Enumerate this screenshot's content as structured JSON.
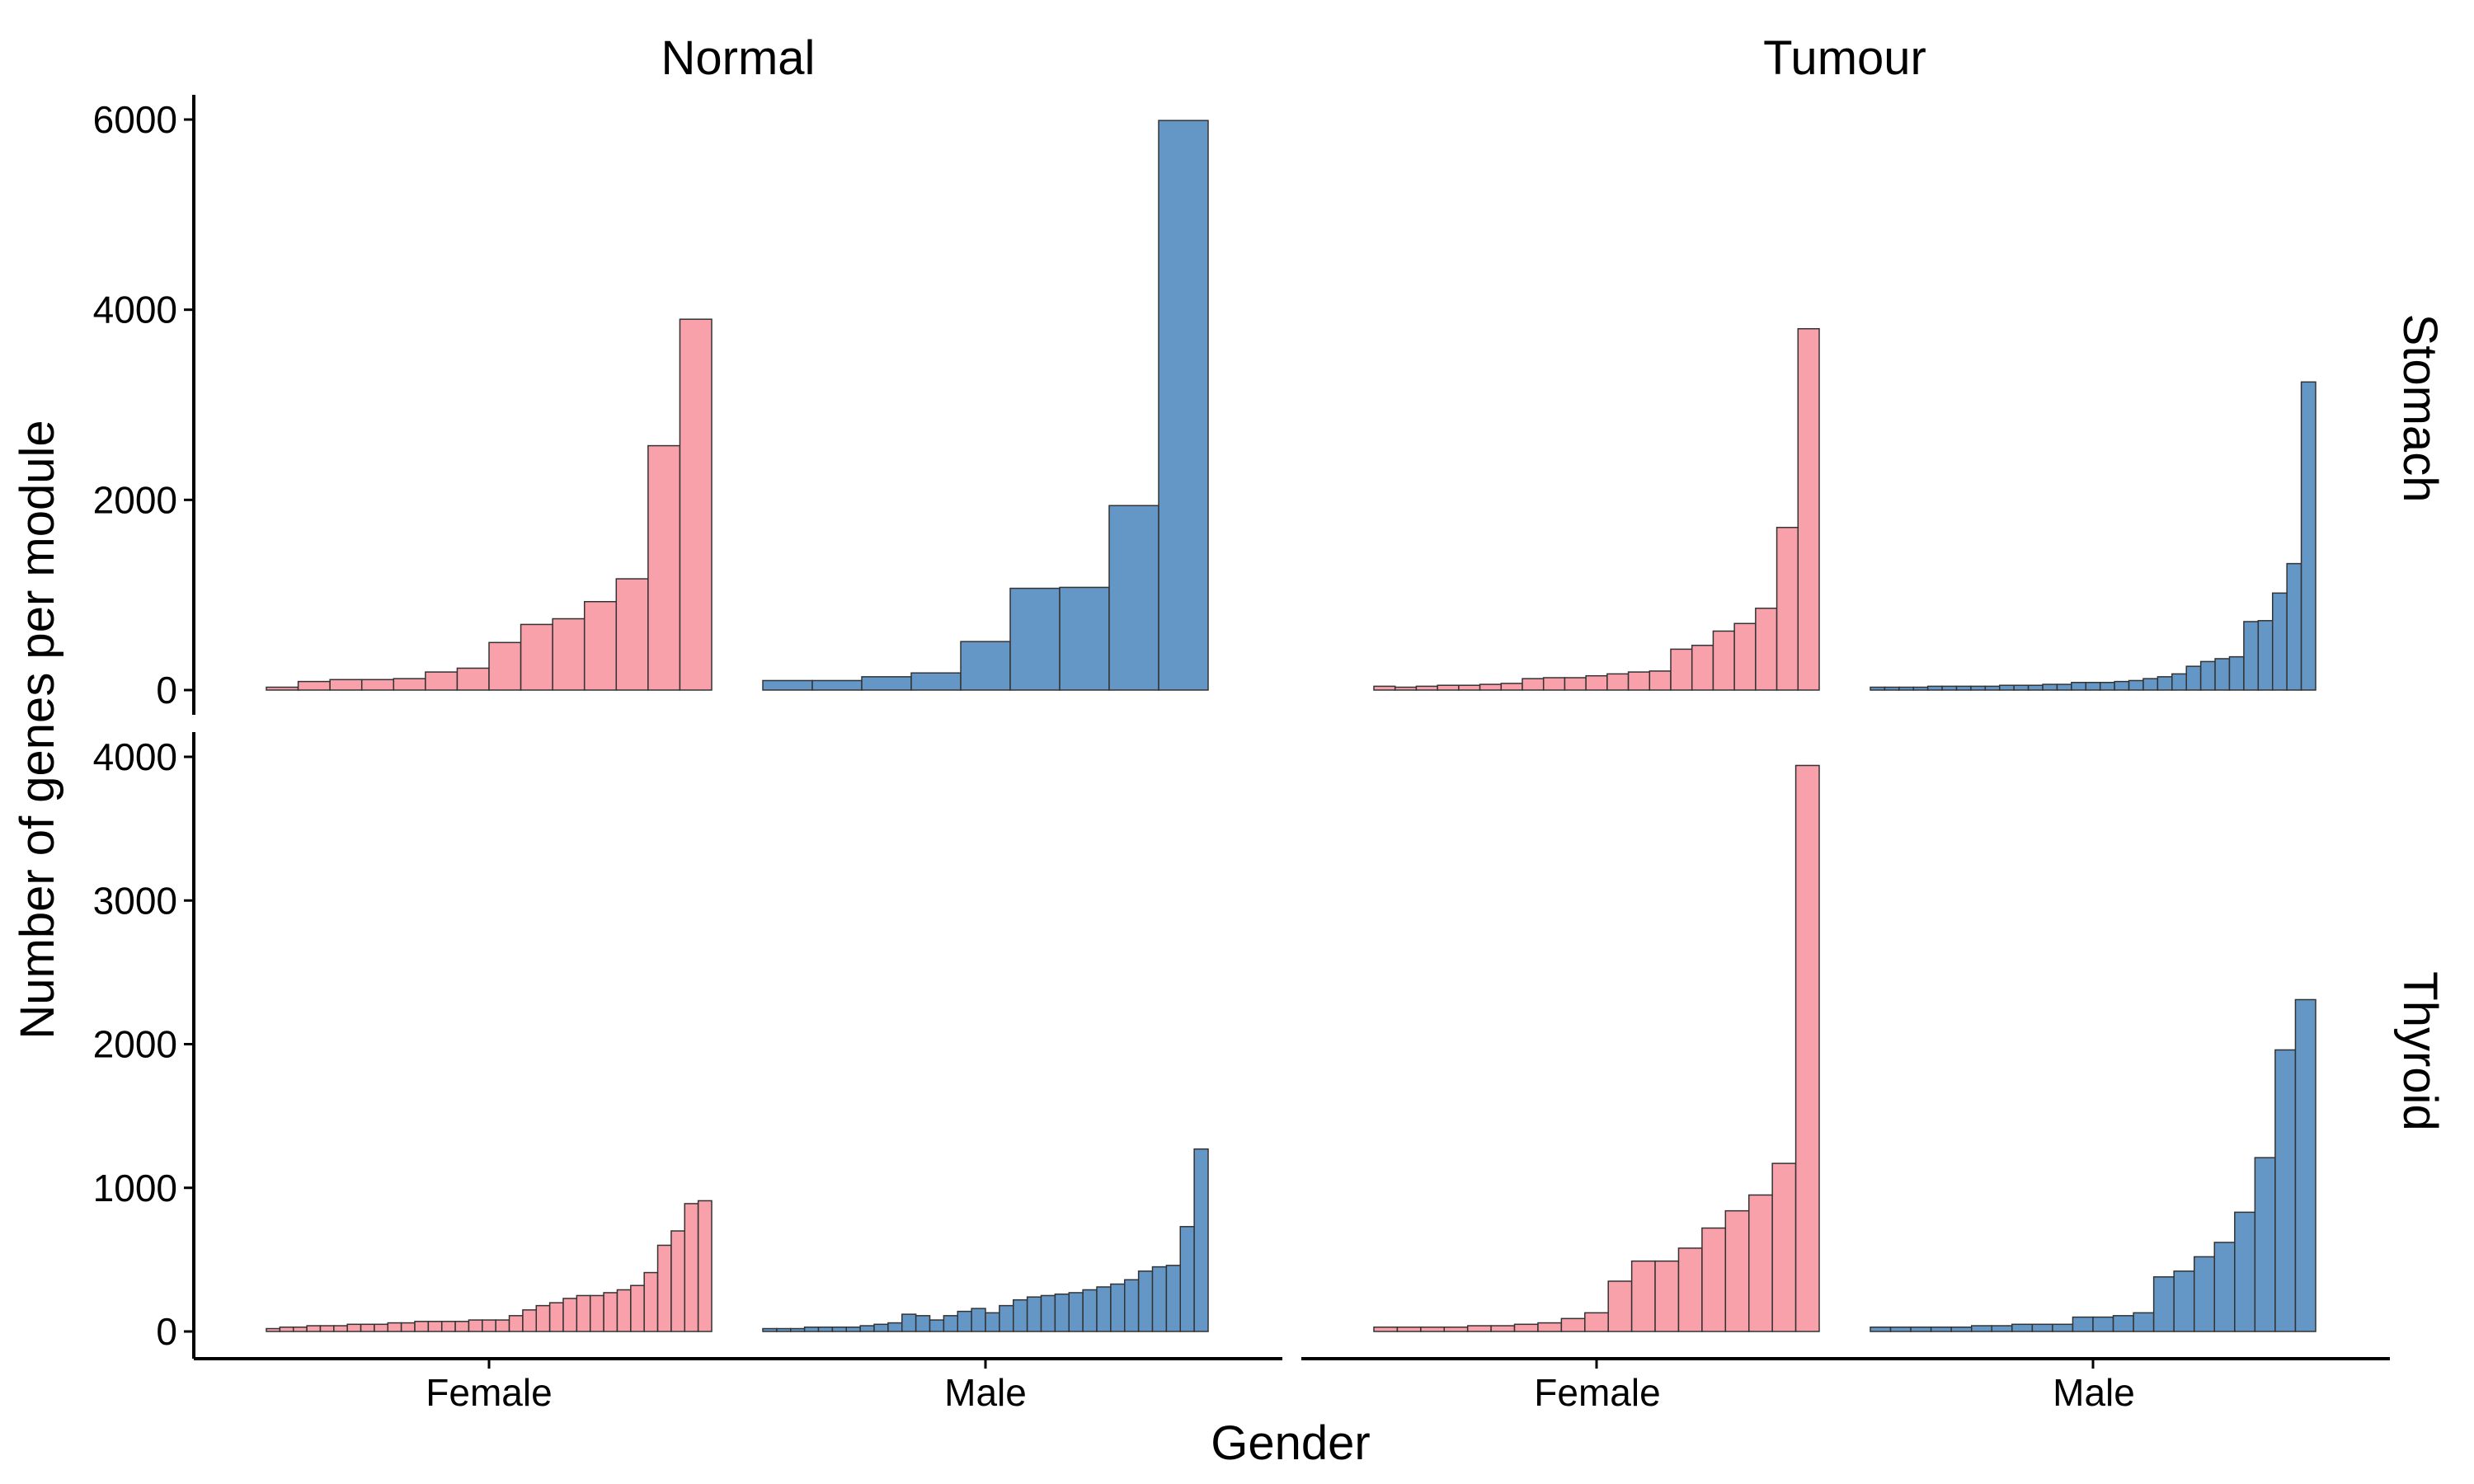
{
  "chart_data": {
    "type": "bar",
    "xlabel": "Gender",
    "ylabel": "Number of genes per module",
    "col_facets": [
      "Normal",
      "Tumour"
    ],
    "row_facets": [
      "Stomach",
      "Thyroid"
    ],
    "categories": [
      "Female",
      "Male"
    ],
    "colors": {
      "Female": "#F8A1AA",
      "Male": "#6497C6"
    },
    "rows": [
      {
        "name": "Stomach",
        "ylim": [
          0,
          6000
        ],
        "yticks": [
          0,
          2000,
          4000,
          6000
        ],
        "panels": [
          {
            "col": "Normal",
            "Female": [
              30,
              90,
              110,
              110,
              120,
              190,
              230,
              500,
              690,
              750,
              930,
              1170,
              2570,
              3900
            ],
            "Male": [
              100,
              100,
              140,
              180,
              510,
              1070,
              1080,
              1940,
              5990
            ]
          },
          {
            "col": "Tumour",
            "Female": [
              40,
              30,
              40,
              50,
              50,
              60,
              70,
              120,
              130,
              130,
              150,
              170,
              190,
              200,
              430,
              470,
              620,
              700,
              860,
              1710,
              3800
            ],
            "Male": [
              30,
              30,
              30,
              30,
              40,
              40,
              40,
              40,
              40,
              50,
              50,
              50,
              60,
              60,
              80,
              80,
              80,
              90,
              100,
              120,
              140,
              170,
              250,
              300,
              330,
              350,
              720,
              730,
              1020,
              1330,
              3240
            ]
          }
        ]
      },
      {
        "name": "Thyroid",
        "ylim": [
          0,
          4000
        ],
        "yticks": [
          0,
          1000,
          2000,
          3000,
          4000
        ],
        "panels": [
          {
            "col": "Normal",
            "Female": [
              20,
              30,
              30,
              40,
              40,
              40,
              50,
              50,
              50,
              60,
              60,
              70,
              70,
              70,
              70,
              80,
              80,
              80,
              110,
              150,
              180,
              200,
              230,
              250,
              250,
              270,
              290,
              320,
              410,
              600,
              700,
              890,
              910
            ],
            "Male": [
              20,
              20,
              20,
              30,
              30,
              30,
              30,
              40,
              50,
              60,
              120,
              110,
              80,
              110,
              140,
              160,
              130,
              180,
              220,
              240,
              250,
              260,
              270,
              290,
              310,
              330,
              360,
              420,
              450,
              460,
              730,
              1270
            ]
          },
          {
            "col": "Tumour",
            "Female": [
              30,
              30,
              30,
              30,
              40,
              40,
              50,
              60,
              90,
              130,
              350,
              490,
              490,
              580,
              720,
              840,
              950,
              1170,
              3940
            ],
            "Male": [
              30,
              30,
              30,
              30,
              30,
              40,
              40,
              50,
              50,
              50,
              100,
              100,
              110,
              130,
              380,
              420,
              520,
              620,
              830,
              1210,
              1960,
              2310
            ]
          }
        ]
      }
    ]
  }
}
